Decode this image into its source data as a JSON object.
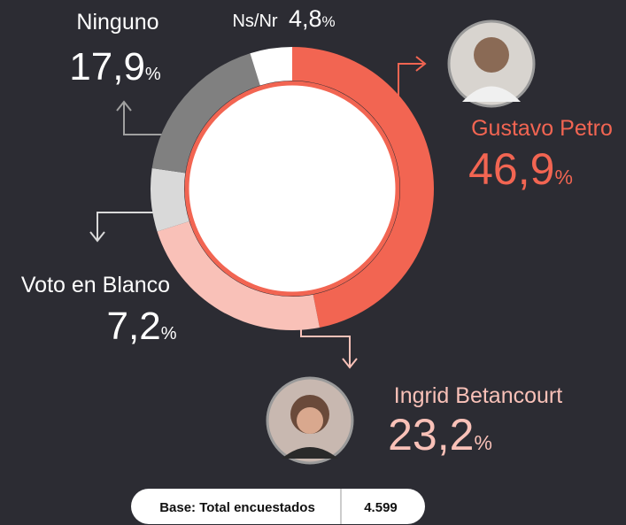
{
  "chart_data": {
    "type": "donut",
    "categories": [
      "Gustavo Petro",
      "Ingrid Betancourt",
      "Voto en Blanco",
      "Ninguno",
      "Ns/Nr"
    ],
    "values": [
      46.9,
      23.2,
      7.2,
      17.9,
      4.8
    ],
    "value_labels": [
      "46,9",
      "23,2",
      "7,2",
      "17,9",
      "4,8"
    ],
    "value_unit": "%",
    "colors": [
      "#f26552",
      "#f9c1b8",
      "#d9d9d9",
      "#808080",
      "#ffffff"
    ],
    "label_colors": [
      "#f26552",
      "#f9c1b8",
      "#ffffff",
      "#ffffff",
      "#ffffff"
    ],
    "base": {
      "label": "Base: Total encuestados",
      "value": "4.599"
    }
  }
}
